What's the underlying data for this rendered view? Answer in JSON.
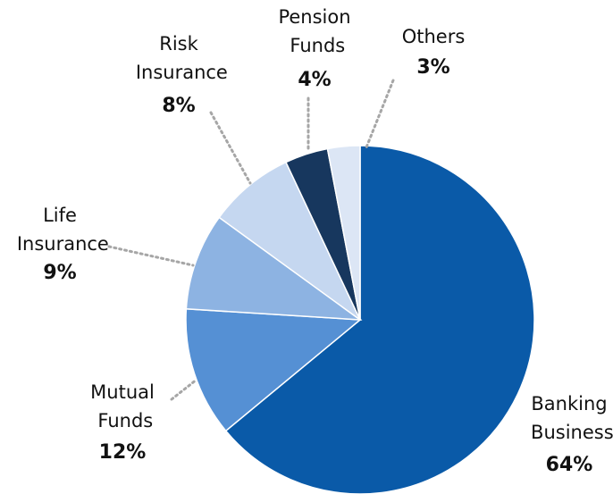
{
  "chart_data": {
    "type": "pie",
    "categories": [
      "Banking Business",
      "Mutual Funds",
      "Life Insurance",
      "Risk Insurance",
      "Pension Funds",
      "Others"
    ],
    "values": [
      64,
      12,
      9,
      8,
      4,
      3
    ],
    "value_labels": [
      "64%",
      "12%",
      "9%",
      "8%",
      "4%",
      "3%"
    ],
    "colors": [
      "#0a5aa8",
      "#5590d4",
      "#8db3e2",
      "#c5d7f0",
      "#17375e",
      "#dce6f5"
    ]
  }
}
